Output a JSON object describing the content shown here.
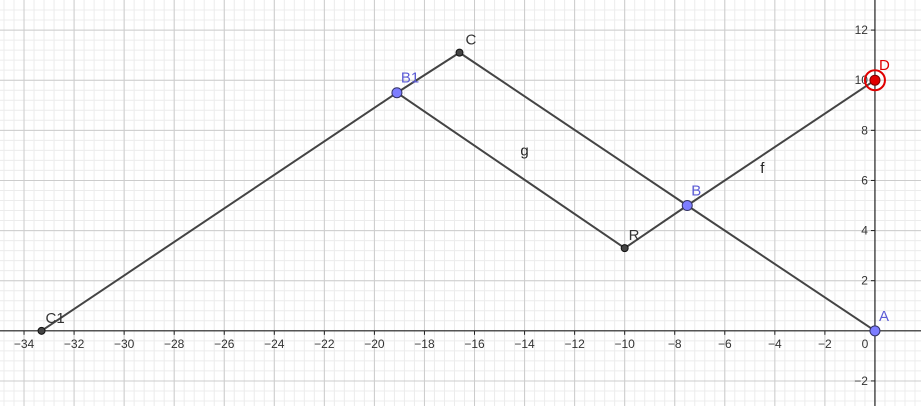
{
  "view": {
    "xlim": [
      -34.96,
      1.84
    ],
    "ylim": [
      -3.0,
      13.2
    ],
    "minor_step": 0.4,
    "major_step": 2,
    "x_ticks": [
      -34,
      -32,
      -30,
      -28,
      -26,
      -24,
      -22,
      -20,
      -18,
      -16,
      -14,
      -12,
      -10,
      -8,
      -6,
      -4,
      -2,
      0
    ],
    "y_ticks": [
      -2,
      2,
      4,
      6,
      8,
      10,
      12
    ]
  },
  "colors": {
    "minor_grid": "#ececec",
    "major_grid": "#cccccc",
    "axis": "#222222",
    "segment": "#444444",
    "blue_point": "#7d7dff",
    "blue_label": "#5b5bd6",
    "black_point": "#444444",
    "red_point": "#e00000"
  },
  "points": [
    {
      "id": "C1",
      "label": "C1",
      "x": -33.3,
      "y": 0,
      "style": "black"
    },
    {
      "id": "B1",
      "label": "B1",
      "x": -19.1,
      "y": 9.5,
      "style": "blue"
    },
    {
      "id": "C",
      "label": "C",
      "x": -16.6,
      "y": 11.1,
      "style": "black"
    },
    {
      "id": "R",
      "label": "R",
      "x": -10.0,
      "y": 3.3,
      "style": "black"
    },
    {
      "id": "B",
      "label": "B",
      "x": -7.5,
      "y": 5.0,
      "style": "blue"
    },
    {
      "id": "A",
      "label": "A",
      "x": 0,
      "y": 0,
      "style": "blue"
    },
    {
      "id": "D",
      "label": "D",
      "x": 0,
      "y": 10.0,
      "style": "red"
    }
  ],
  "segments": [
    {
      "from": "C1",
      "to": "B1"
    },
    {
      "from": "B1",
      "to": "C"
    },
    {
      "from": "C",
      "to": "B"
    },
    {
      "from": "B",
      "to": "A"
    },
    {
      "from": "B1",
      "to": "R"
    },
    {
      "from": "R",
      "to": "B"
    },
    {
      "from": "B",
      "to": "D"
    }
  ],
  "segment_labels": [
    {
      "text": "g",
      "x": -14.0,
      "y": 7.0
    },
    {
      "text": "f",
      "x": -4.5,
      "y": 6.3
    }
  ]
}
